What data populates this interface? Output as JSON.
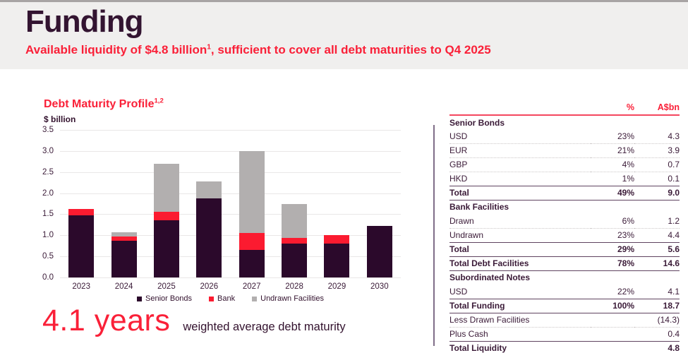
{
  "page": {
    "title": "Funding",
    "subtitle_prefix": "Available liquidity of $4.8 billion",
    "subtitle_sup": "1",
    "subtitle_suffix": ", sufficient to cover all debt maturities to Q4 2025"
  },
  "colors": {
    "accent_red": "#fa2038",
    "dark_plum": "#3a1a37",
    "bar_dark": "#2b092b",
    "bar_red": "#fb1b30",
    "bar_gray": "#b2afaf",
    "header_band": "#f0efee",
    "table_header_line": "#f4475f",
    "grid_line": "#e9e7e7"
  },
  "chart": {
    "title_main": "Debt Maturity Profile",
    "title_sup": "1,2",
    "unit_label": "$ billion",
    "wam_value": "4.1 years",
    "wam_label": "weighted average debt maturity"
  },
  "chart_data": {
    "type": "bar",
    "stacked": true,
    "title": "Debt Maturity Profile",
    "ylabel": "$ billion",
    "categories": [
      "2023",
      "2024",
      "2025",
      "2026",
      "2027",
      "2028",
      "2029",
      "2030"
    ],
    "series": [
      {
        "name": "Senior Bonds",
        "color_key": "bar_dark",
        "values": [
          1.47,
          0.87,
          1.35,
          1.88,
          0.65,
          0.8,
          0.8,
          1.22
        ]
      },
      {
        "name": "Bank",
        "color_key": "bar_red",
        "values": [
          0.16,
          0.1,
          0.2,
          0.0,
          0.4,
          0.14,
          0.2,
          0.0
        ]
      },
      {
        "name": "Undrawn Facilities",
        "color_key": "bar_gray",
        "values": [
          0.0,
          0.1,
          1.15,
          0.4,
          1.95,
          0.81,
          0.0,
          0.0
        ]
      }
    ],
    "stack_totals": [
      1.63,
      1.07,
      2.7,
      2.28,
      3.0,
      1.75,
      1.0,
      1.22
    ],
    "ylim": [
      0,
      3.5
    ],
    "ytick_step": 0.5,
    "yticks": [
      "3.5",
      "3.0",
      "2.5",
      "2.0",
      "1.5",
      "1.0",
      "0.5",
      "0.0"
    ],
    "grid": true,
    "legend_position": "bottom"
  },
  "table": {
    "headers": {
      "label": "",
      "pct": "%",
      "amount": "A$bn"
    },
    "rows": [
      {
        "label": "Senior Bonds",
        "pct": "",
        "amount": "",
        "style": "section"
      },
      {
        "label": "USD",
        "pct": "23%",
        "amount": "4.3",
        "style": "plain"
      },
      {
        "label": "EUR",
        "pct": "21%",
        "amount": "3.9",
        "style": "plain"
      },
      {
        "label": "GBP",
        "pct": "4%",
        "amount": "0.7",
        "style": "plain"
      },
      {
        "label": "HKD",
        "pct": "1%",
        "amount": "0.1",
        "style": "plain"
      },
      {
        "label": "Total",
        "pct": "49%",
        "amount": "9.0",
        "style": "total"
      },
      {
        "label": "Bank Facilities",
        "pct": "",
        "amount": "",
        "style": "section"
      },
      {
        "label": "Drawn",
        "pct": "6%",
        "amount": "1.2",
        "style": "plain"
      },
      {
        "label": "Undrawn",
        "pct": "23%",
        "amount": "4.4",
        "style": "plain"
      },
      {
        "label": "Total",
        "pct": "29%",
        "amount": "5.6",
        "style": "total"
      },
      {
        "label": "Total Debt Facilities",
        "pct": "78%",
        "amount": "14.6",
        "style": "total"
      },
      {
        "label": "Subordinated Notes",
        "pct": "",
        "amount": "",
        "style": "section"
      },
      {
        "label": "USD",
        "pct": "22%",
        "amount": "4.1",
        "style": "plain"
      },
      {
        "label": "Total Funding",
        "pct": "100%",
        "amount": "18.7",
        "style": "total"
      },
      {
        "label": "Less Drawn Facilities",
        "pct": "",
        "amount": "(14.3)",
        "style": "plain"
      },
      {
        "label": "Plus Cash",
        "pct": "",
        "amount": "0.4",
        "style": "plain"
      },
      {
        "label": "Total Liquidity",
        "pct": "",
        "amount": "4.8",
        "style": "total"
      }
    ]
  }
}
